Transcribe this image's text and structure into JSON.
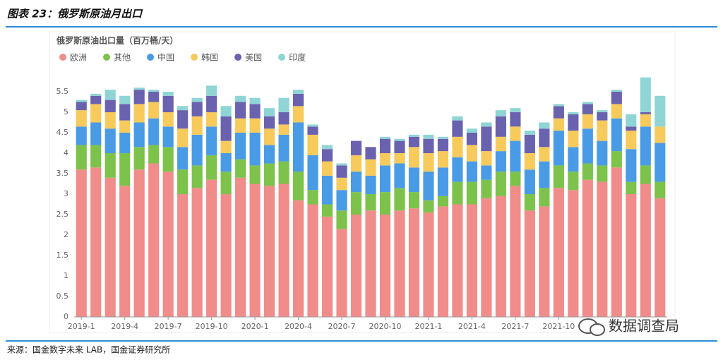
{
  "chart_data": {
    "type": "stacked_bar",
    "header": "图表 23：俄罗斯原油月出口",
    "title": "俄罗斯原油出口量（百万桶/天）",
    "source": "来源：国金数字未来 LAB，国金证券研究所",
    "badge": "数据调查局",
    "categories": [
      "2019-1",
      null,
      null,
      "2019-4",
      null,
      null,
      "2019-7",
      null,
      null,
      "2019-10",
      null,
      null,
      "2020-1",
      null,
      null,
      "2020-4",
      null,
      null,
      "2020-7",
      null,
      null,
      "2020-10",
      null,
      null,
      "2021-1",
      null,
      null,
      "2021-4",
      null,
      null,
      "2021-7",
      null,
      null,
      "2021-10",
      null,
      null,
      null,
      null,
      null,
      null,
      null
    ],
    "series": [
      {
        "name": "欧洲",
        "color": "#f08c8a",
        "values": [
          3.6,
          3.65,
          3.4,
          3.2,
          3.6,
          3.75,
          3.55,
          3.0,
          3.15,
          3.35,
          3.0,
          3.4,
          3.25,
          3.2,
          3.25,
          2.85,
          2.75,
          2.45,
          2.15,
          2.5,
          2.6,
          2.5,
          2.6,
          2.65,
          2.55,
          2.7,
          2.75,
          2.75,
          2.9,
          2.95,
          3.2,
          2.6,
          2.7,
          3.15,
          3.1,
          3.35,
          3.3,
          3.65,
          3.0,
          3.25,
          2.9
        ]
      },
      {
        "name": "其他",
        "color": "#7dc24b",
        "values": [
          0.6,
          0.55,
          0.6,
          0.8,
          0.55,
          0.45,
          0.6,
          0.6,
          0.55,
          0.6,
          0.55,
          0.45,
          0.45,
          0.55,
          0.55,
          0.7,
          0.35,
          0.3,
          0.45,
          0.55,
          0.4,
          0.55,
          0.55,
          0.4,
          0.3,
          0.25,
          0.55,
          0.55,
          0.45,
          0.6,
          0.35,
          0.4,
          0.45,
          0.55,
          0.45,
          0.4,
          0.4,
          0.4,
          0.3,
          0.45,
          0.4
        ]
      },
      {
        "name": "中国",
        "color": "#4a9be6",
        "values": [
          0.45,
          0.55,
          0.6,
          0.5,
          0.6,
          0.65,
          0.5,
          0.55,
          0.75,
          0.7,
          0.45,
          0.65,
          0.8,
          0.45,
          0.65,
          1.2,
          0.85,
          0.7,
          0.5,
          0.5,
          0.45,
          0.65,
          0.6,
          0.6,
          0.7,
          0.7,
          0.6,
          0.5,
          0.35,
          0.5,
          0.75,
          0.6,
          0.65,
          0.85,
          0.6,
          0.85,
          0.6,
          0.8,
          0.8,
          0.95,
          0.95
        ]
      },
      {
        "name": "韩国",
        "color": "#f7ca5c",
        "values": [
          0.4,
          0.45,
          0.4,
          0.3,
          0.45,
          0.4,
          0.35,
          0.45,
          0.45,
          0.35,
          0.3,
          0.35,
          0.35,
          0.4,
          0.25,
          0.4,
          0.5,
          0.35,
          0.3,
          0.4,
          0.4,
          0.3,
          0.25,
          0.5,
          0.45,
          0.4,
          0.5,
          0.4,
          0.35,
          0.35,
          0.35,
          0.4,
          0.35,
          0.3,
          0.4,
          0.35,
          0.5,
          0.35,
          0.45,
          0.3,
          0.4
        ]
      },
      {
        "name": "美国",
        "color": "#6a62ae",
        "values": [
          0.2,
          0.2,
          0.3,
          0.4,
          0.35,
          0.25,
          0.4,
          0.45,
          0.35,
          0.4,
          0.6,
          0.4,
          0.35,
          0.3,
          0.3,
          0.3,
          0.2,
          0.3,
          0.3,
          0.35,
          0.3,
          0.35,
          0.3,
          0.25,
          0.35,
          0.3,
          0.4,
          0.3,
          0.6,
          0.5,
          0.35,
          0.45,
          0.45,
          0.3,
          0.4,
          0.25,
          0.2,
          0.3,
          0.1,
          0.05,
          0
        ]
      },
      {
        "name": "印度",
        "color": "#8fd5d5",
        "values": [
          0.05,
          0.05,
          0.25,
          0.2,
          0.05,
          0.05,
          0.1,
          0.1,
          0.1,
          0.25,
          0.25,
          0.15,
          0.15,
          0.2,
          0.35,
          0.1,
          0.05,
          0.1,
          0.05,
          0,
          0,
          0.05,
          0.05,
          0.05,
          0.1,
          0.05,
          0.1,
          0.1,
          0.1,
          0.15,
          0.1,
          0.1,
          0.15,
          0.05,
          0.05,
          0.05,
          0.05,
          0.05,
          0.3,
          0.85,
          0.75
        ]
      }
    ],
    "ylim": [
      0,
      6
    ],
    "yticks": [
      0,
      0.5,
      1,
      1.5,
      2,
      2.5,
      3,
      3.5,
      4,
      4.5,
      5,
      5.5
    ],
    "grid": false
  }
}
